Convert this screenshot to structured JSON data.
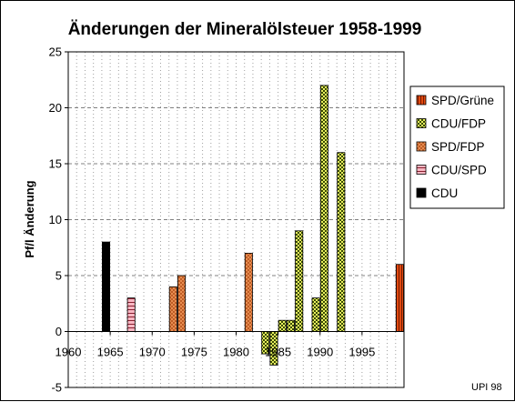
{
  "chart_data": {
    "type": "bar",
    "title": "Änderungen der Mineralölsteuer 1958-1999",
    "xlabel": "",
    "ylabel": "Pf/l Änderung",
    "xlim": [
      1960,
      2000
    ],
    "ylim": [
      -5,
      25
    ],
    "x_ticks": [
      "1960",
      "1965",
      "1970",
      "1975",
      "1980",
      "1985",
      "1990",
      "1995"
    ],
    "y_ticks": [
      "25",
      "20",
      "15",
      "10",
      "5",
      "0",
      "-5"
    ],
    "grid": true,
    "legend_position": "right",
    "series": [
      {
        "name": "SPD/Grüne",
        "color": "#e24a10",
        "pattern": "vertical-stripes",
        "points": [
          {
            "x": 1999,
            "y": 6
          }
        ]
      },
      {
        "name": "CDU/FDP",
        "color": "#d4e63a",
        "pattern": "checker",
        "points": [
          {
            "x": 1983,
            "y": -2
          },
          {
            "x": 1984,
            "y": -3
          },
          {
            "x": 1985,
            "y": 1
          },
          {
            "x": 1986,
            "y": 1
          },
          {
            "x": 1987,
            "y": 9
          },
          {
            "x": 1989,
            "y": 3
          },
          {
            "x": 1990,
            "y": 22
          },
          {
            "x": 1992,
            "y": 16
          }
        ]
      },
      {
        "name": "SPD/FDP",
        "color": "#f08a4b",
        "pattern": "crosshatch",
        "points": [
          {
            "x": 1972,
            "y": 4
          },
          {
            "x": 1973,
            "y": 5
          },
          {
            "x": 1981,
            "y": 7
          }
        ]
      },
      {
        "name": "CDU/SPD",
        "color": "#f7a9b8",
        "pattern": "horizontal-stripes",
        "points": [
          {
            "x": 1967,
            "y": 3
          }
        ]
      },
      {
        "name": "CDU",
        "color": "#000000",
        "pattern": "solid",
        "points": [
          {
            "x": 1964,
            "y": 8
          }
        ]
      }
    ],
    "source_note": "UPI 98"
  }
}
